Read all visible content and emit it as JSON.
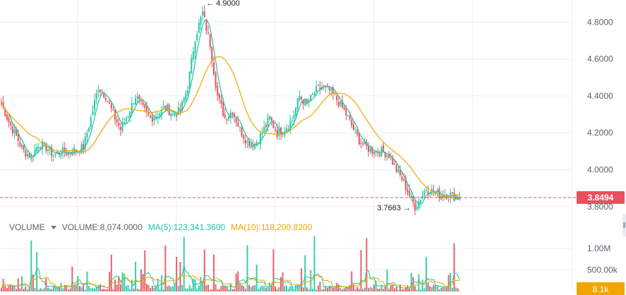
{
  "price_axis": {
    "ticks": [
      "4.8000",
      "4.6000",
      "4.4000",
      "4.2000",
      "4.0000",
      "3.8000"
    ],
    "ylim": [
      3.78,
      4.92
    ]
  },
  "volume_axis": {
    "ticks": [
      "1.00M",
      "500.00k"
    ],
    "ylim": [
      0,
      1360000
    ]
  },
  "annotations": {
    "high_label": "4.9000",
    "low_label": "3.7663"
  },
  "current_price": {
    "label": "3.8494",
    "value": 3.8494
  },
  "current_volume": {
    "label": "8.1k"
  },
  "volume_legend": {
    "name": "VOLUME",
    "volume_text": "VOLUME:8,074.0000",
    "ma5_text": "MA(5):123,341.3600",
    "ma10_text": "MA(10):118,200.8200"
  },
  "colors": {
    "up": "#26c6a3",
    "down": "#e8505b",
    "ma_short": "#20c4a0",
    "ma_long": "#f0a500",
    "price_tag": "#e8505b",
    "vol_tag": "#f0a500",
    "grid": "#eef0f3",
    "axis_text": "#5b6270"
  },
  "chart_data": {
    "type": "candlestick",
    "price_ylim": [
      3.78,
      4.92
    ],
    "close_keypoints": [
      [
        0,
        4.36
      ],
      [
        4,
        4.26
      ],
      [
        8,
        4.18
      ],
      [
        12,
        4.1
      ],
      [
        16,
        4.07
      ],
      [
        20,
        4.14
      ],
      [
        24,
        4.12
      ],
      [
        28,
        4.08
      ],
      [
        32,
        4.1
      ],
      [
        36,
        4.09
      ],
      [
        40,
        4.11
      ],
      [
        44,
        4.12
      ],
      [
        48,
        4.28
      ],
      [
        52,
        4.45
      ],
      [
        56,
        4.4
      ],
      [
        60,
        4.3
      ],
      [
        64,
        4.22
      ],
      [
        68,
        4.3
      ],
      [
        72,
        4.4
      ],
      [
        76,
        4.33
      ],
      [
        80,
        4.28
      ],
      [
        84,
        4.3
      ],
      [
        88,
        4.34
      ],
      [
        92,
        4.3
      ],
      [
        96,
        4.32
      ],
      [
        100,
        4.45
      ],
      [
        104,
        4.72
      ],
      [
        108,
        4.85
      ],
      [
        112,
        4.68
      ],
      [
        116,
        4.4
      ],
      [
        120,
        4.28
      ],
      [
        124,
        4.32
      ],
      [
        128,
        4.22
      ],
      [
        132,
        4.15
      ],
      [
        136,
        4.14
      ],
      [
        140,
        4.2
      ],
      [
        144,
        4.28
      ],
      [
        148,
        4.2
      ],
      [
        152,
        4.22
      ],
      [
        156,
        4.27
      ],
      [
        160,
        4.4
      ],
      [
        164,
        4.35
      ],
      [
        168,
        4.42
      ],
      [
        172,
        4.45
      ],
      [
        176,
        4.43
      ],
      [
        180,
        4.38
      ],
      [
        184,
        4.32
      ],
      [
        188,
        4.24
      ],
      [
        192,
        4.16
      ],
      [
        196,
        4.12
      ],
      [
        200,
        4.1
      ],
      [
        204,
        4.1
      ],
      [
        208,
        4.08
      ],
      [
        212,
        4.0
      ],
      [
        216,
        3.93
      ],
      [
        220,
        3.84
      ],
      [
        222,
        3.8
      ],
      [
        224,
        3.83
      ],
      [
        228,
        3.9
      ],
      [
        232,
        3.88
      ],
      [
        236,
        3.86
      ],
      [
        240,
        3.87
      ],
      [
        244,
        3.85
      ],
      [
        246,
        3.8494
      ]
    ],
    "volume_ylim": [
      0,
      1360000
    ],
    "current_volume": 8074,
    "ma5_volume": 123341.36,
    "ma10_volume": 118200.82
  }
}
